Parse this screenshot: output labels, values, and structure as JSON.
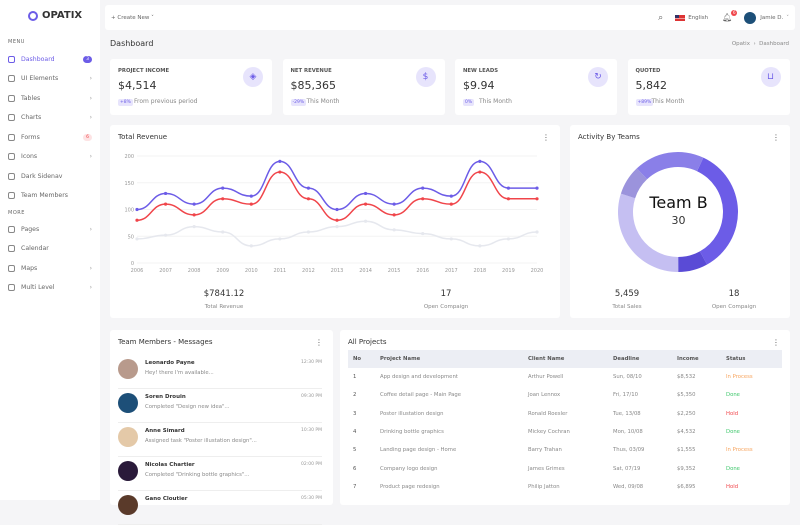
{
  "brand": "OPATIX",
  "sidebar": {
    "menu_label": "MENU",
    "more_label": "MORE",
    "items": [
      {
        "label": "Dashboard",
        "badge": "3",
        "active": true
      },
      {
        "label": "UI Elements",
        "chevron": true
      },
      {
        "label": "Tables",
        "chevron": true
      },
      {
        "label": "Charts",
        "chevron": true
      },
      {
        "label": "Forms",
        "badge": "6"
      },
      {
        "label": "Icons",
        "chevron": true
      },
      {
        "label": "Dark Sidenav"
      },
      {
        "label": "Team Members"
      }
    ],
    "more": [
      {
        "label": "Pages",
        "chevron": true
      },
      {
        "label": "Calendar"
      },
      {
        "label": "Maps",
        "chevron": true
      },
      {
        "label": "Multi Level",
        "chevron": true
      }
    ]
  },
  "topbar": {
    "create_new": "+ Create New ˅",
    "language": "English",
    "notifications": "6",
    "user": "Jamie D."
  },
  "page": {
    "title": "Dashboard",
    "breadcrumb": [
      "Opatix",
      "Dashboard"
    ]
  },
  "stats": [
    {
      "title": "PROJECT INCOME",
      "value": "$4,514",
      "badge": "+8%",
      "note": "From previous period",
      "icon": "layers-icon"
    },
    {
      "title": "NET REVENUE",
      "value": "$85,365",
      "badge": "-29%",
      "note": "This Month",
      "icon": "dollar-icon"
    },
    {
      "title": "NEW LEADS",
      "value": "$9.94",
      "badge": "0%",
      "note": "This Month",
      "icon": "refresh-icon"
    },
    {
      "title": "QUOTED",
      "value": "5,842",
      "badge": "+89%",
      "note": "This Month",
      "icon": "basket-icon"
    }
  ],
  "revenue": {
    "title": "Total Revenue",
    "total": "$7841.12",
    "total_label": "Total Revenue",
    "open": "17",
    "open_label": "Open Compaign"
  },
  "activity": {
    "title": "Activity By Teams",
    "center_label": "Team B",
    "center_value": "30",
    "sales": "5,459",
    "sales_label": "Total Sales",
    "open": "18",
    "open_label": "Open Compaign"
  },
  "chart_data": [
    {
      "type": "line",
      "x": [
        "2006",
        "2007",
        "2008",
        "2009",
        "2010",
        "2011",
        "2012",
        "2013",
        "2014",
        "2015",
        "2016",
        "2017",
        "2018",
        "2019",
        "2020"
      ],
      "ylim": [
        0,
        200
      ],
      "yticks": [
        0,
        50,
        100,
        150,
        200
      ],
      "series": [
        {
          "color": "#6c5ce7",
          "values": [
            100,
            130,
            110,
            140,
            125,
            190,
            140,
            100,
            130,
            110,
            140,
            125,
            190,
            140,
            140
          ]
        },
        {
          "color": "#f0454a",
          "values": [
            80,
            110,
            90,
            120,
            110,
            170,
            120,
            80,
            110,
            90,
            120,
            110,
            170,
            120,
            120
          ]
        },
        {
          "color": "#e6e8ee",
          "values": [
            45,
            52,
            68,
            58,
            32,
            45,
            58,
            68,
            78,
            62,
            55,
            45,
            32,
            45,
            58
          ]
        }
      ]
    },
    {
      "type": "pie",
      "values": [
        35,
        8,
        30,
        8,
        19
      ],
      "colors": [
        "#6c5ce7",
        "#5a4bd6",
        "#c5bff2",
        "#9b93dc",
        "#8a7fe8"
      ]
    }
  ],
  "messages": {
    "title": "Team Members - Messages",
    "items": [
      {
        "name": "Leonardo Payne",
        "text": "Hey! there I'm available...",
        "time": "12:30 PM",
        "color": "#b89a8c"
      },
      {
        "name": "Soren Drouin",
        "text": "Completed \"Design new idea\"...",
        "time": "09:30 PM",
        "color": "#1d4f78"
      },
      {
        "name": "Anne Simard",
        "text": "Assigned task \"Poster illustation design\"...",
        "time": "10:30 PM",
        "color": "#e4c9a8"
      },
      {
        "name": "Nicolas Chartier",
        "text": "Completed \"Drinking bottle graphics\"...",
        "time": "02:00 PM",
        "color": "#2a1a3a"
      },
      {
        "name": "Gano Cloutier",
        "text": "",
        "time": "05:30 PM",
        "color": "#5a3a2a"
      }
    ]
  },
  "projects": {
    "title": "All Projects",
    "columns": [
      "No",
      "Project Name",
      "Client Name",
      "Deadline",
      "Income",
      "Status"
    ],
    "rows": [
      [
        "1",
        "App design and development",
        "Arthur Powell",
        "Sun, 08/10",
        "$8,532",
        "In Process"
      ],
      [
        "2",
        "Coffee detail page - Main Page",
        "Joan Lennox",
        "Fri, 17/10",
        "$5,350",
        "Done"
      ],
      [
        "3",
        "Poster illustation design",
        "Ronald Roesler",
        "Tue, 13/08",
        "$2,250",
        "Hold"
      ],
      [
        "4",
        "Drinking bottle graphics",
        "Mickey Cochran",
        "Mon, 10/08",
        "$4,532",
        "Done"
      ],
      [
        "5",
        "Landing page design - Home",
        "Barry Trahan",
        "Thus, 03/09",
        "$1,555",
        "In Process"
      ],
      [
        "6",
        "Company logo design",
        "James Grimes",
        "Sat, 07/19",
        "$9,352",
        "Done"
      ],
      [
        "7",
        "Product page redesign",
        "Philip Jatton",
        "Wed, 09/08",
        "$6,895",
        "Hold"
      ]
    ],
    "status_colors": {
      "In Process": "#f7a35c",
      "Done": "#3cc66a",
      "Hold": "#f0454a"
    }
  }
}
